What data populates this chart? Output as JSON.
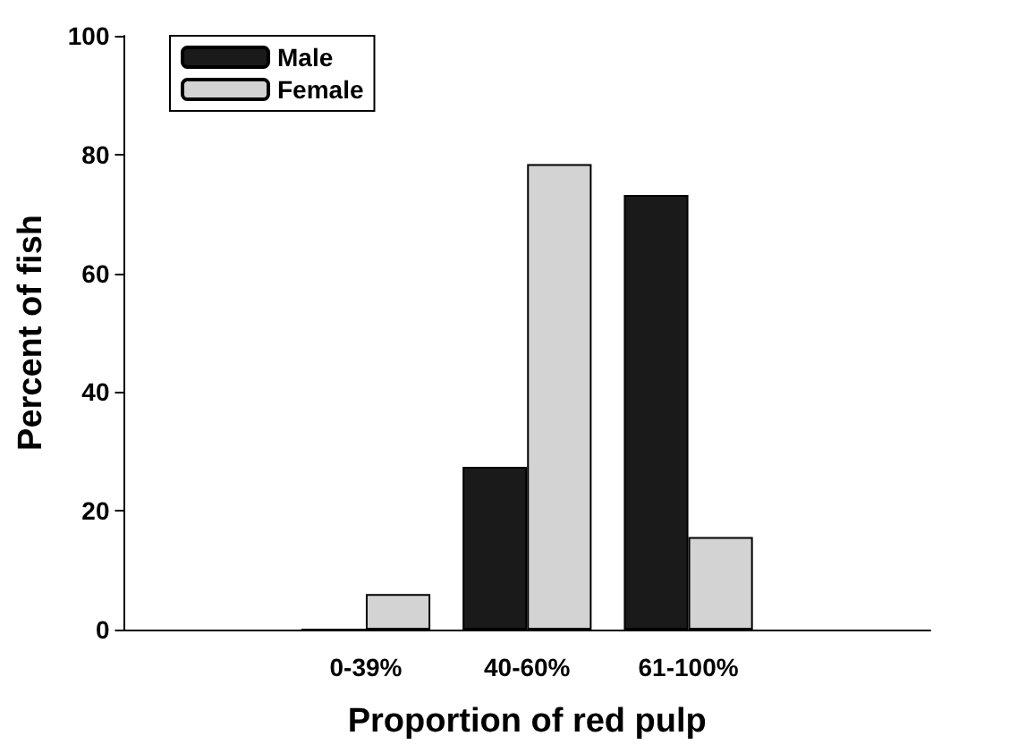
{
  "chart_data": {
    "type": "bar",
    "xlabel": "Proportion of red pulp",
    "ylabel": "Percent of fish",
    "categories": [
      null,
      "0-39%",
      "40-60%",
      "61-100%",
      null
    ],
    "series": [
      {
        "name": "Male",
        "color": "#1a1a1a",
        "values": [
          null,
          0,
          27.4,
          73.2,
          null
        ]
      },
      {
        "name": "Female",
        "color": "#d3d3d3",
        "values": [
          null,
          6,
          78.4,
          15.6,
          null
        ]
      }
    ],
    "ylim": [
      0,
      100
    ],
    "yticks": [
      0,
      20,
      40,
      60,
      80,
      100
    ],
    "grid": false,
    "legend": "top left"
  }
}
